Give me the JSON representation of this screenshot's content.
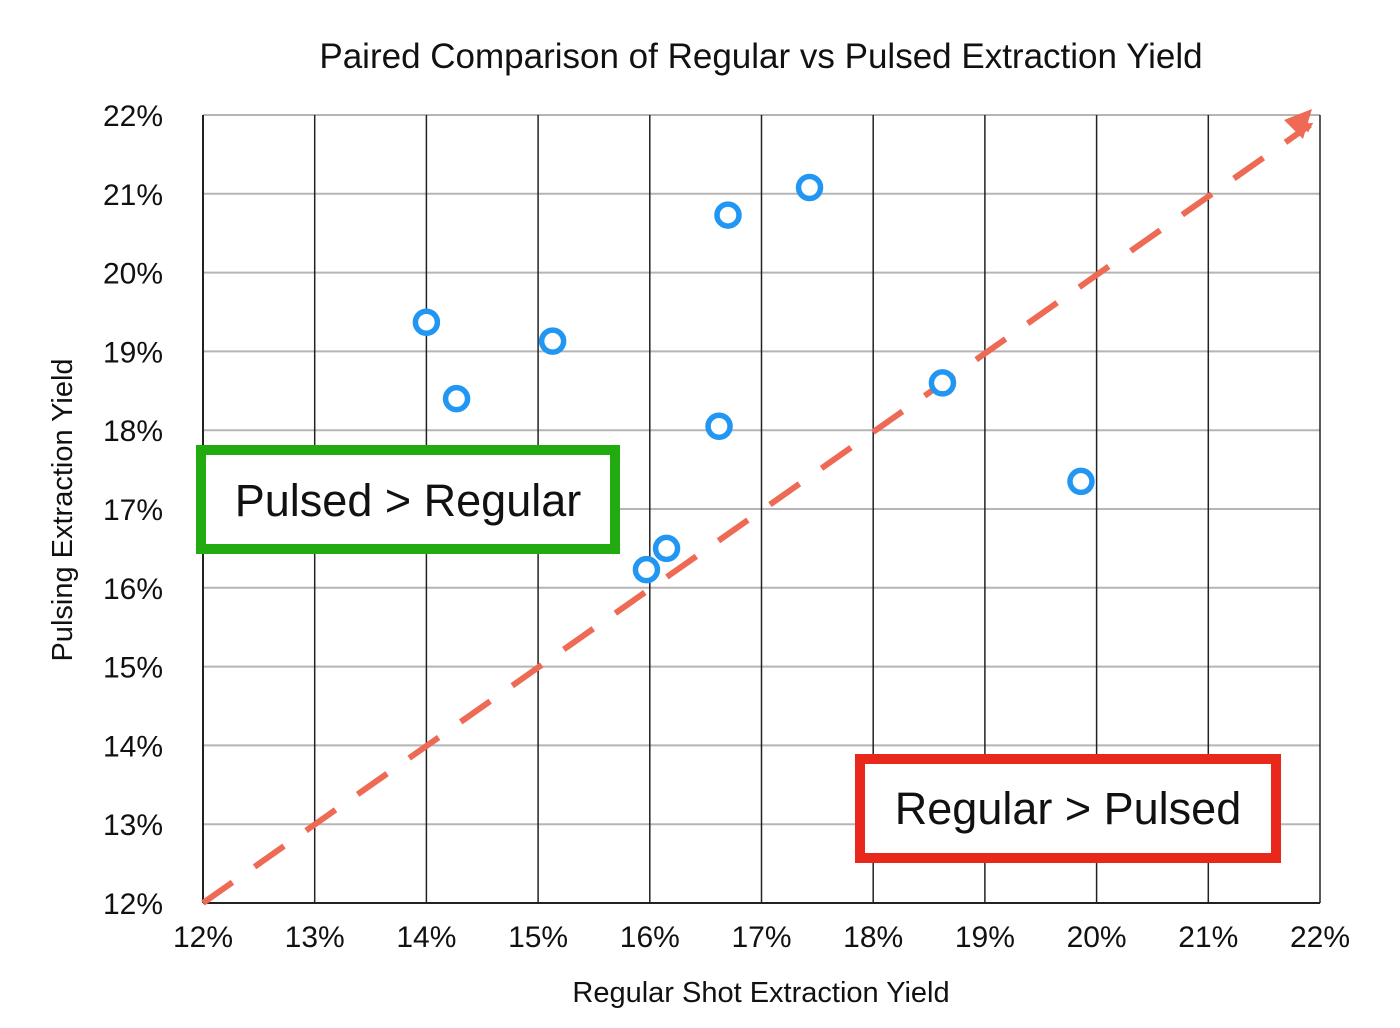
{
  "chart_data": {
    "type": "scatter",
    "title": "Paired Comparison of Regular vs Pulsed Extraction Yield",
    "xlabel": "Regular Shot Extraction Yield",
    "ylabel": "Pulsing Extraction Yield",
    "xlim": [
      12,
      22
    ],
    "ylim": [
      12,
      22
    ],
    "x_ticks": [
      "12%",
      "13%",
      "14%",
      "15%",
      "16%",
      "17%",
      "18%",
      "19%",
      "20%",
      "21%",
      "22%"
    ],
    "y_ticks": [
      "12%",
      "13%",
      "14%",
      "15%",
      "16%",
      "17%",
      "18%",
      "19%",
      "20%",
      "21%",
      "22%"
    ],
    "grid": true,
    "series": [
      {
        "color": "#2196F3",
        "marker": "hollow-circle",
        "points": [
          {
            "x": 14.0,
            "y": 19.37
          },
          {
            "x": 14.27,
            "y": 18.4
          },
          {
            "x": 15.13,
            "y": 19.13
          },
          {
            "x": 15.97,
            "y": 16.23
          },
          {
            "x": 16.15,
            "y": 16.5
          },
          {
            "x": 16.62,
            "y": 18.05
          },
          {
            "x": 16.7,
            "y": 20.73
          },
          {
            "x": 17.43,
            "y": 21.08
          },
          {
            "x": 18.62,
            "y": 18.6
          },
          {
            "x": 19.86,
            "y": 17.35
          }
        ]
      }
    ],
    "reference_line": {
      "from": [
        12,
        12
      ],
      "to": [
        22,
        22
      ],
      "style": "dashed-arrow",
      "color": "#EE6A55"
    },
    "annotations": [
      {
        "text": "Pulsed > Regular",
        "border_color": "#22AA11"
      },
      {
        "text": "Regular > Pulsed",
        "border_color": "#E8281A"
      }
    ]
  }
}
